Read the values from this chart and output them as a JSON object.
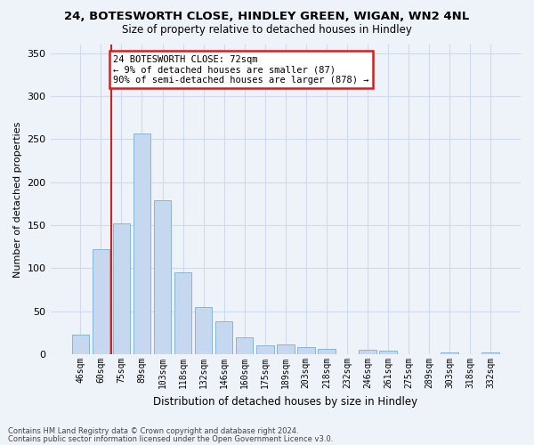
{
  "title1": "24, BOTESWORTH CLOSE, HINDLEY GREEN, WIGAN, WN2 4NL",
  "title2": "Size of property relative to detached houses in Hindley",
  "xlabel": "Distribution of detached houses by size in Hindley",
  "ylabel": "Number of detached properties",
  "categories": [
    "46sqm",
    "60sqm",
    "75sqm",
    "89sqm",
    "103sqm",
    "118sqm",
    "132sqm",
    "146sqm",
    "160sqm",
    "175sqm",
    "189sqm",
    "203sqm",
    "218sqm",
    "232sqm",
    "246sqm",
    "261sqm",
    "275sqm",
    "289sqm",
    "303sqm",
    "318sqm",
    "332sqm"
  ],
  "values": [
    23,
    122,
    152,
    257,
    179,
    95,
    55,
    38,
    20,
    11,
    12,
    8,
    6,
    0,
    5,
    4,
    0,
    0,
    2,
    0,
    2
  ],
  "bar_color": "#c5d8f0",
  "bar_edge_color": "#7aadd4",
  "grid_color": "#d0daea",
  "background_color": "#eef2f9",
  "vline_x": 1.5,
  "vline_color": "#cc2222",
  "annotation_text": "24 BOTESWORTH CLOSE: 72sqm\n← 9% of detached houses are smaller (87)\n90% of semi-detached houses are larger (878) →",
  "annotation_box_color": "#ffffff",
  "annotation_box_edge": "#cc2222",
  "ylim": [
    0,
    360
  ],
  "yticks": [
    0,
    50,
    100,
    150,
    200,
    250,
    300,
    350
  ],
  "footer1": "Contains HM Land Registry data © Crown copyright and database right 2024.",
  "footer2": "Contains public sector information licensed under the Open Government Licence v3.0."
}
